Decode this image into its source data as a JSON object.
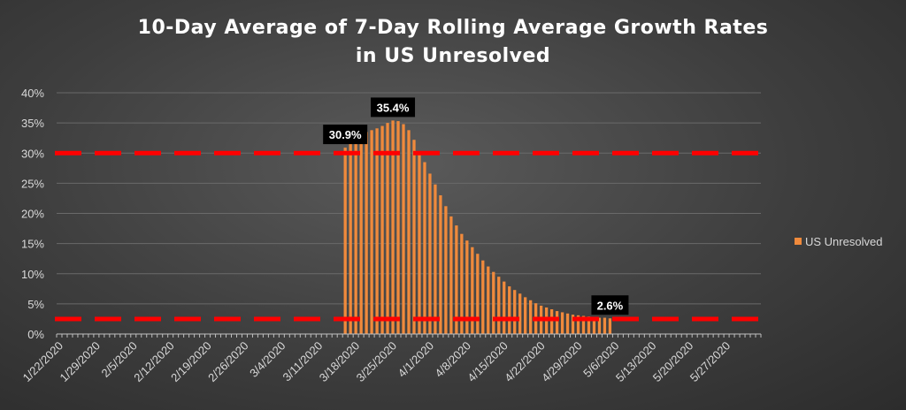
{
  "chart_data": {
    "type": "bar",
    "title": [
      "10-Day Average of 7-Day Rolling Average Growth Rates",
      "in US Unresolved"
    ],
    "xlabel": "",
    "ylabel": "",
    "ylim": [
      0,
      0.4
    ],
    "y_ticks": [
      "0%",
      "5%",
      "10%",
      "15%",
      "20%",
      "25%",
      "30%",
      "35%",
      "40%"
    ],
    "x_start": "2020-01-22",
    "x_end": "2020-06-02",
    "x_tick_labels": [
      "1/22/2020",
      "1/29/2020",
      "2/5/2020",
      "2/12/2020",
      "2/19/2020",
      "2/26/2020",
      "3/4/2020",
      "3/11/2020",
      "3/18/2020",
      "3/25/2020",
      "4/1/2020",
      "4/8/2020",
      "4/15/2020",
      "4/22/2020",
      "4/29/2020",
      "5/6/2020",
      "5/13/2020",
      "5/20/2020",
      "5/27/2020"
    ],
    "grid": true,
    "legend": "right",
    "bar_color": "#f08a3c",
    "series": [
      {
        "name": "US Unresolved",
        "x": [
          "2020-03-16",
          "2020-03-17",
          "2020-03-18",
          "2020-03-19",
          "2020-03-20",
          "2020-03-21",
          "2020-03-22",
          "2020-03-23",
          "2020-03-24",
          "2020-03-25",
          "2020-03-26",
          "2020-03-27",
          "2020-03-28",
          "2020-03-29",
          "2020-03-30",
          "2020-03-31",
          "2020-04-01",
          "2020-04-02",
          "2020-04-03",
          "2020-04-04",
          "2020-04-05",
          "2020-04-06",
          "2020-04-07",
          "2020-04-08",
          "2020-04-09",
          "2020-04-10",
          "2020-04-11",
          "2020-04-12",
          "2020-04-13",
          "2020-04-14",
          "2020-04-15",
          "2020-04-16",
          "2020-04-17",
          "2020-04-18",
          "2020-04-19",
          "2020-04-20",
          "2020-04-21",
          "2020-04-22",
          "2020-04-23",
          "2020-04-24",
          "2020-04-25",
          "2020-04-26",
          "2020-04-27",
          "2020-04-28",
          "2020-04-29",
          "2020-04-30",
          "2020-05-01",
          "2020-05-02",
          "2020-05-03",
          "2020-05-04",
          "2020-05-05"
        ],
        "values": [
          0.309,
          0.32,
          0.328,
          0.332,
          0.335,
          0.338,
          0.341,
          0.345,
          0.35,
          0.354,
          0.353,
          0.348,
          0.338,
          0.322,
          0.303,
          0.285,
          0.266,
          0.248,
          0.23,
          0.212,
          0.195,
          0.18,
          0.166,
          0.155,
          0.144,
          0.133,
          0.122,
          0.112,
          0.103,
          0.095,
          0.087,
          0.079,
          0.073,
          0.067,
          0.061,
          0.056,
          0.051,
          0.047,
          0.044,
          0.041,
          0.038,
          0.036,
          0.034,
          0.032,
          0.031,
          0.03,
          0.029,
          0.028,
          0.027,
          0.027,
          0.026
        ]
      }
    ],
    "data_labels": [
      {
        "x": "2020-03-16",
        "text": "30.9%"
      },
      {
        "x": "2020-03-25",
        "text": "35.4%"
      },
      {
        "x": "2020-05-05",
        "text": "2.6%"
      }
    ],
    "reference_lines": [
      {
        "y": 0.3,
        "color": "#ff0000"
      },
      {
        "y": 0.025,
        "color": "#ff0000"
      }
    ]
  }
}
